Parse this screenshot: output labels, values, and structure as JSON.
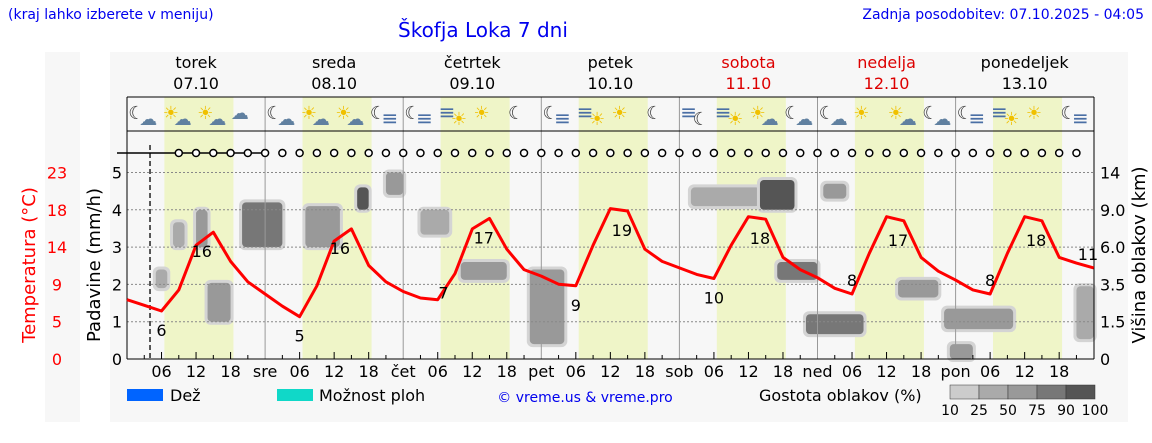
{
  "header": {
    "hint": "(kraj lahko izberete v meniju)",
    "title": "Škofja Loka 7 dni",
    "updated": "Zadnja posodobitev: 07.10.2025 - 04:05"
  },
  "days": [
    {
      "name": "torek",
      "date": "07.10",
      "weekend": false,
      "abbr": ""
    },
    {
      "name": "sreda",
      "date": "08.10",
      "weekend": false,
      "abbr": "sre"
    },
    {
      "name": "četrtek",
      "date": "09.10",
      "weekend": false,
      "abbr": "čet"
    },
    {
      "name": "petek",
      "date": "10.10",
      "weekend": false,
      "abbr": "pet"
    },
    {
      "name": "sobota",
      "date": "11.10",
      "weekend": true,
      "abbr": "sob"
    },
    {
      "name": "nedelja",
      "date": "12.10",
      "weekend": true,
      "abbr": "ned"
    },
    {
      "name": "ponedeljek",
      "date": "13.10",
      "weekend": false,
      "abbr": "pon"
    }
  ],
  "colors": {
    "temp": "#ff0000",
    "weekend": "#dd0000",
    "daylight": "#eff5c8",
    "rain": "#0064ff",
    "showers": "#10d8c8"
  },
  "icons": [
    "moon-cloud",
    "sun-cloud",
    "sun-cloud",
    "cloud",
    "moon-cloud",
    "sun-cloud",
    "sun-cloud",
    "moon-fog",
    "moon-fog",
    "fog-sun",
    "sun",
    "moon",
    "moon-fog",
    "fog-sun",
    "sun",
    "moon",
    "fog-moon",
    "fog-sun",
    "sun-cloud",
    "moon-cloud",
    "moon-cloud",
    "sun",
    "sun-cloud",
    "moon-cloud",
    "moon-fog",
    "fog-sun",
    "sun",
    "moon-fog"
  ],
  "legend": {
    "rain": "Dež",
    "showers": "Možnost ploh",
    "credit": "© vreme.us & vreme.pro",
    "density": "Gostota oblakov (%)",
    "density_ticks": [
      "10",
      "25",
      "50",
      "75",
      "90",
      "100"
    ]
  },
  "chart_data": {
    "type": "line",
    "title": "Škofja Loka 7 dni",
    "ylabel_left": "Padavine (mm/h)",
    "ylabel_temp": "Temperatura (°C)",
    "ylabel_right": "Višina oblakov (km)",
    "precip_ticks": [
      "0",
      "1",
      "2",
      "3",
      "4",
      "5"
    ],
    "temp_ticks": [
      "0",
      "5",
      "9",
      "14",
      "18",
      "23"
    ],
    "cloud_ticks": [
      "0",
      "1.5",
      "3.5",
      "6.0",
      "9.0",
      "14"
    ],
    "hour_ticks": [
      "06",
      "12",
      "18"
    ],
    "ylim_precip": [
      0,
      5.5
    ],
    "temp_range": [
      0,
      25
    ],
    "now_hour": 4,
    "temperature": {
      "hours": [
        0,
        3,
        6,
        9,
        12,
        15,
        18,
        21,
        24,
        27,
        30,
        33,
        36,
        39,
        42,
        45,
        48,
        51,
        54,
        57,
        60,
        63,
        66,
        69,
        72,
        75,
        78,
        81,
        84,
        87,
        90,
        93,
        96,
        99,
        102,
        105,
        108,
        111,
        114,
        117,
        120,
        123,
        126,
        129,
        132,
        135,
        138,
        141,
        144,
        147,
        150,
        153,
        156,
        159,
        162,
        165,
        168
      ],
      "values": [
        7.3,
        6.6,
        5.9,
        8.5,
        14.0,
        15.6,
        12.0,
        9.5,
        8.0,
        6.5,
        5.2,
        9.0,
        14.5,
        16.0,
        11.5,
        9.5,
        8.3,
        7.5,
        7.3,
        10.5,
        16.0,
        17.3,
        13.5,
        11.0,
        10.2,
        9.2,
        9.0,
        14.0,
        18.5,
        18.2,
        13.5,
        12.0,
        11.2,
        10.4,
        9.9,
        14.0,
        17.5,
        17.2,
        12.5,
        11.0,
        10.0,
        8.7,
        8.0,
        13.0,
        17.5,
        17.0,
        12.5,
        10.8,
        9.7,
        8.5,
        8.0,
        13.0,
        17.5,
        17.0,
        12.5,
        11.8,
        11.2
      ]
    },
    "temp_labels": [
      {
        "hour": 6,
        "value": "6",
        "pos": "below"
      },
      {
        "hour": 13,
        "value": "16",
        "pos": "below"
      },
      {
        "hour": 30,
        "value": "5",
        "pos": "below"
      },
      {
        "hour": 37,
        "value": "16",
        "pos": "below"
      },
      {
        "hour": 55,
        "value": "7",
        "pos": "below"
      },
      {
        "hour": 62,
        "value": "17",
        "pos": "below"
      },
      {
        "hour": 78,
        "value": "9",
        "pos": "below"
      },
      {
        "hour": 86,
        "value": "19",
        "pos": "below"
      },
      {
        "hour": 102,
        "value": "10",
        "pos": "below"
      },
      {
        "hour": 110,
        "value": "18",
        "pos": "below"
      },
      {
        "hour": 126,
        "value": "8",
        "pos": "above"
      },
      {
        "hour": 134,
        "value": "17",
        "pos": "below"
      },
      {
        "hour": 150,
        "value": "8",
        "pos": "above"
      },
      {
        "hour": 158,
        "value": "18",
        "pos": "below"
      },
      {
        "hour": 167,
        "value": "11",
        "pos": "above"
      }
    ],
    "clouds": [
      {
        "h0": 5,
        "h1": 7,
        "k0": 3.3,
        "k1": 4.5,
        "d": 40
      },
      {
        "h0": 8,
        "h1": 10,
        "k0": 6,
        "k1": 8,
        "d": 40
      },
      {
        "h0": 14,
        "h1": 18,
        "k0": 1.5,
        "k1": 3.6,
        "d": 60
      },
      {
        "h0": 12,
        "h1": 14,
        "k0": 6,
        "k1": 9,
        "d": 50
      },
      {
        "h0": 20,
        "h1": 27,
        "k0": 6,
        "k1": 10,
        "d": 75
      },
      {
        "h0": 31,
        "h1": 37,
        "k0": 6,
        "k1": 9.5,
        "d": 60
      },
      {
        "h0": 40,
        "h1": 42,
        "k0": 9,
        "k1": 12,
        "d": 90
      },
      {
        "h0": 45,
        "h1": 48,
        "k0": 11,
        "k1": 14,
        "d": 50
      },
      {
        "h0": 51,
        "h1": 56,
        "k0": 7,
        "k1": 9,
        "d": 40
      },
      {
        "h0": 58,
        "h1": 66,
        "k0": 3.8,
        "k1": 5,
        "d": 50
      },
      {
        "h0": 70,
        "h1": 76,
        "k0": 0.6,
        "k1": 4.5,
        "d": 60
      },
      {
        "h0": 98,
        "h1": 110,
        "k0": 9.5,
        "k1": 12,
        "d": 40
      },
      {
        "h0": 110,
        "h1": 116,
        "k0": 9,
        "k1": 13,
        "d": 90
      },
      {
        "h0": 121,
        "h1": 125,
        "k0": 10.5,
        "k1": 12.5,
        "d": 50
      },
      {
        "h0": 113,
        "h1": 120,
        "k0": 3.8,
        "k1": 5,
        "d": 75
      },
      {
        "h0": 118,
        "h1": 128,
        "k0": 1,
        "k1": 1.9,
        "d": 75
      },
      {
        "h0": 134,
        "h1": 141,
        "k0": 2.8,
        "k1": 3.8,
        "d": 60
      },
      {
        "h0": 143,
        "h1": 147,
        "k0": 0,
        "k1": 0.6,
        "d": 60
      },
      {
        "h0": 142,
        "h1": 154,
        "k0": 1.2,
        "k1": 2.2,
        "d": 50
      },
      {
        "h0": 165,
        "h1": 168,
        "k0": 0.8,
        "k1": 3.4,
        "d": 40
      }
    ]
  }
}
